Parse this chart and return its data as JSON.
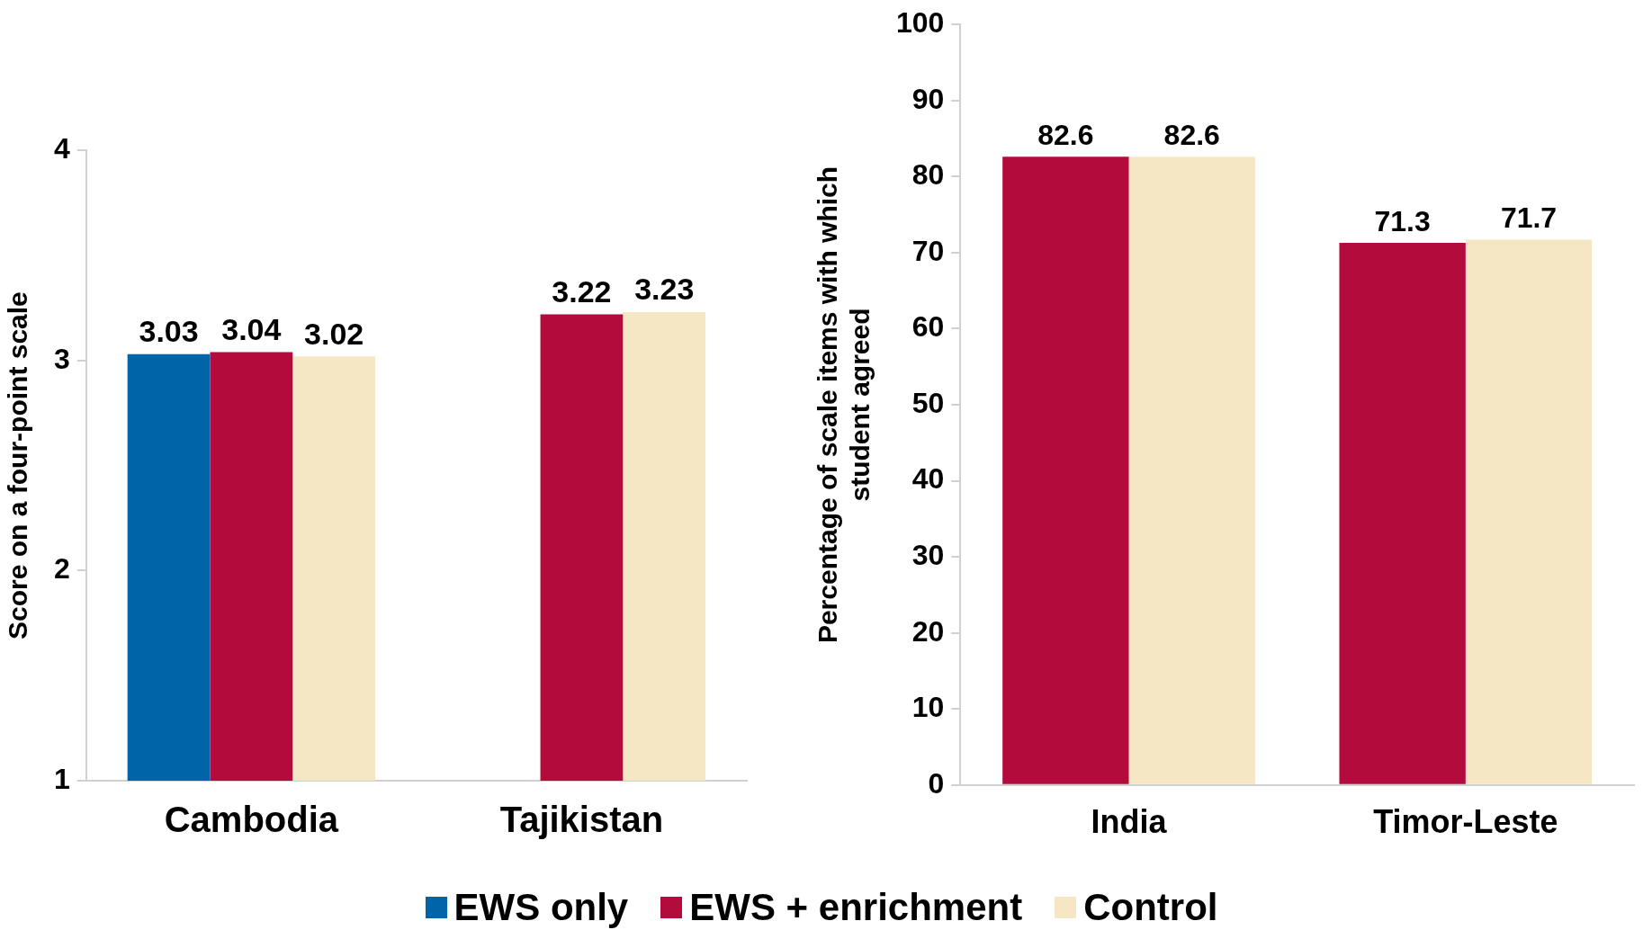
{
  "chart_data": [
    {
      "type": "bar",
      "ylabel": "Score on a four-point scale",
      "categories": [
        "Cambodia",
        "Tajikistan"
      ],
      "series": [
        {
          "name": "EWS only",
          "color": "#0064a8",
          "values": [
            3.03,
            null
          ]
        },
        {
          "name": "EWS + enrichment",
          "color": "#b30b3b",
          "values": [
            3.04,
            3.22
          ]
        },
        {
          "name": "Control",
          "color": "#f5e6c4",
          "values": [
            3.02,
            3.23
          ]
        }
      ],
      "ylim": [
        1,
        4
      ],
      "yticks": [
        1,
        2,
        3,
        4
      ],
      "grid": false,
      "legend": "bottom",
      "data_labels": true
    },
    {
      "type": "bar",
      "ylabel": "Percentage of scale items with which student agreed",
      "categories": [
        "India",
        "Timor-Leste"
      ],
      "series": [
        {
          "name": "EWS + enrichment",
          "color": "#b30b3b",
          "values": [
            82.6,
            71.3
          ]
        },
        {
          "name": "Control",
          "color": "#f5e6c4",
          "values": [
            82.6,
            71.7
          ]
        }
      ],
      "ylim": [
        0,
        100
      ],
      "yticks": [
        0,
        10,
        20,
        30,
        40,
        50,
        60,
        70,
        80,
        90,
        100
      ],
      "grid": false,
      "legend": "bottom",
      "data_labels": true
    }
  ]
}
